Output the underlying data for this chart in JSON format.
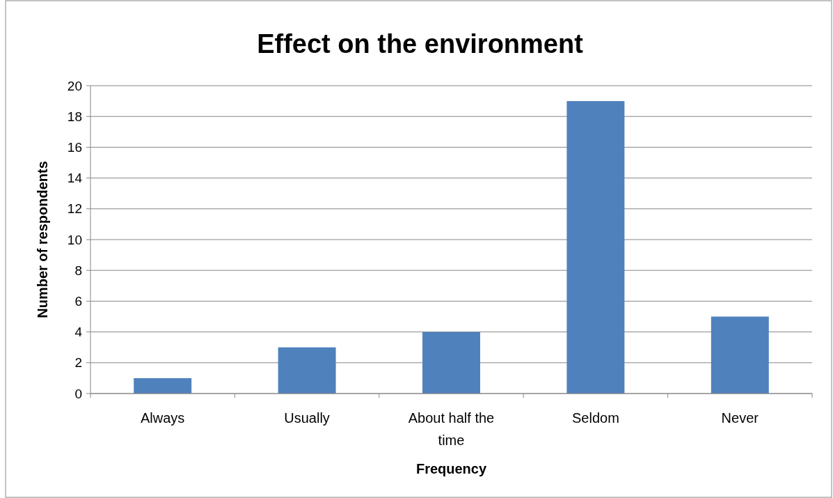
{
  "chart_data": {
    "type": "bar",
    "title": "Effect on the environment",
    "xlabel": "Frequency",
    "ylabel": "Number of respondents",
    "categories": [
      "Always",
      "Usually",
      "About half the time",
      "Seldom",
      "Never"
    ],
    "values": [
      1,
      3,
      4,
      19,
      5
    ],
    "color": "#4f81bd",
    "ylim": [
      0,
      20
    ],
    "yticks": [
      0,
      2,
      4,
      6,
      8,
      10,
      12,
      14,
      16,
      18,
      20
    ],
    "grid": "y"
  }
}
